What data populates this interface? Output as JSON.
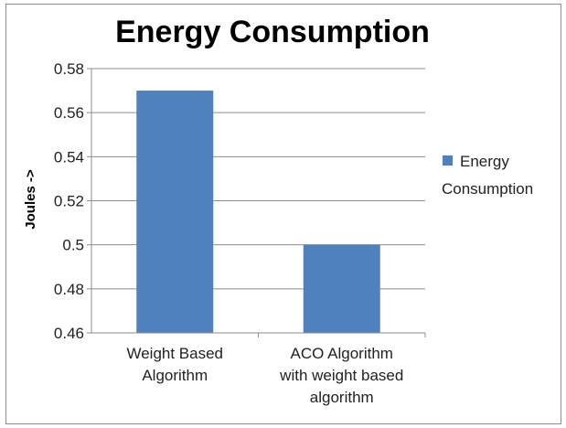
{
  "chart_data": {
    "type": "bar",
    "title": "Energy Consumption",
    "ylabel": "Joules ->",
    "xlabel": "",
    "categories": [
      [
        "Weight Based",
        "Algorithm"
      ],
      [
        "ACO Algorithm",
        "with weight based",
        "algorithm"
      ]
    ],
    "series": [
      {
        "name": "Energy Consumption",
        "values": [
          0.57,
          0.5
        ],
        "color": "#4f81bd"
      }
    ],
    "ylim": [
      0.46,
      0.58
    ],
    "yticks": [
      "0.46",
      "0.48",
      "0.5",
      "0.52",
      "0.54",
      "0.56",
      "0.58"
    ],
    "legend": {
      "position": "right",
      "lines": [
        "Energy",
        "Consumption"
      ]
    },
    "grid": true
  }
}
